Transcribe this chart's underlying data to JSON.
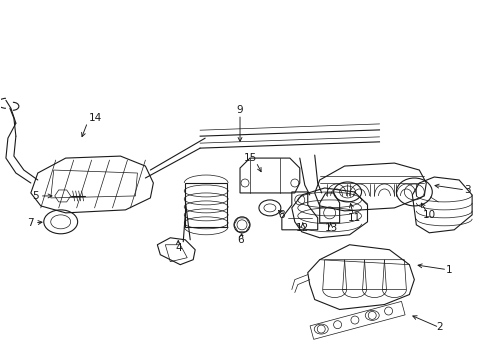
{
  "background_color": "#ffffff",
  "line_color": "#1a1a1a",
  "fig_width": 4.89,
  "fig_height": 3.6,
  "dpi": 100,
  "lw": 0.8,
  "lw_thin": 0.5,
  "label_fs": 7.5
}
